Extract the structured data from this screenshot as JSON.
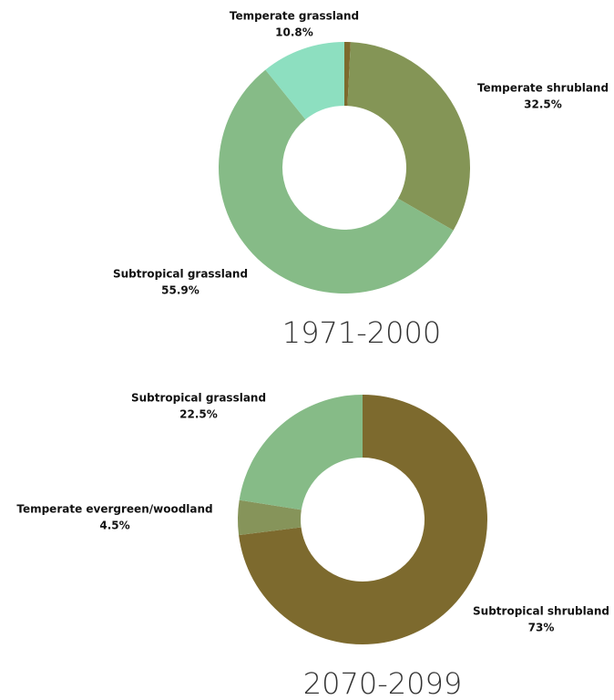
{
  "chart_data": [
    {
      "type": "donut",
      "title": "1971-2000",
      "categories": [
        null,
        "Temperate shrubland",
        "Subtropical grassland",
        "Temperate grassland"
      ],
      "values": [
        0.8,
        32.5,
        55.9,
        10.8
      ],
      "value_labels": [
        null,
        "32.5%",
        "55.9%",
        "10.8%"
      ],
      "colors": [
        "#7d6a2e",
        "#849556",
        "#86bb87",
        "#8ddfc0"
      ]
    },
    {
      "type": "donut",
      "title": "2070-2099",
      "categories": [
        "Subtropical shrubland",
        "Temperate evergreen/woodland",
        "Subtropical grassland"
      ],
      "values": [
        73,
        4.5,
        22.5
      ],
      "value_labels": [
        "73%",
        "4.5%",
        "22.5%"
      ],
      "colors": [
        "#7d6a2e",
        "#86945a",
        "#86bb87"
      ]
    }
  ]
}
